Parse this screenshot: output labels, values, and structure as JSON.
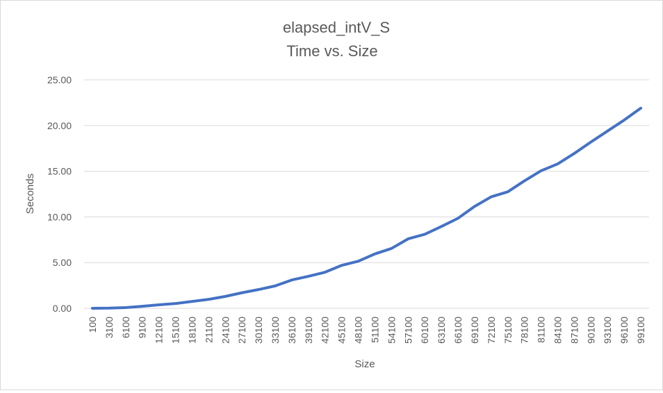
{
  "chart_data": {
    "type": "line",
    "title": "elapsed_intV_S",
    "subtitle": "Time vs. Size",
    "xlabel": "Size",
    "ylabel": "Seconds",
    "ylim": [
      0,
      25
    ],
    "yticks": [
      "0.00",
      "5.00",
      "10.00",
      "15.00",
      "20.00",
      "25.00"
    ],
    "grid": true,
    "legend": "none",
    "line_color": "#4472C4",
    "categories": [
      "100",
      "3100",
      "6100",
      "9100",
      "12100",
      "15100",
      "18100",
      "21100",
      "24100",
      "27100",
      "30100",
      "33100",
      "36100",
      "39100",
      "42100",
      "45100",
      "48100",
      "51100",
      "54100",
      "57100",
      "60100",
      "63100",
      "66100",
      "69100",
      "72100",
      "75100",
      "78100",
      "81100",
      "84100",
      "87100",
      "90100",
      "93100",
      "96100",
      "99100"
    ],
    "series": [
      {
        "values": [
          0.0,
          0.02,
          0.08,
          0.22,
          0.38,
          0.52,
          0.75,
          0.98,
          1.3,
          1.7,
          2.05,
          2.45,
          3.1,
          3.5,
          3.95,
          4.7,
          5.15,
          5.95,
          6.55,
          7.6,
          8.1,
          8.95,
          9.85,
          11.15,
          12.2,
          12.75,
          13.95,
          15.05,
          15.8,
          16.95,
          18.2,
          19.4,
          20.6,
          21.9
        ]
      }
    ]
  }
}
